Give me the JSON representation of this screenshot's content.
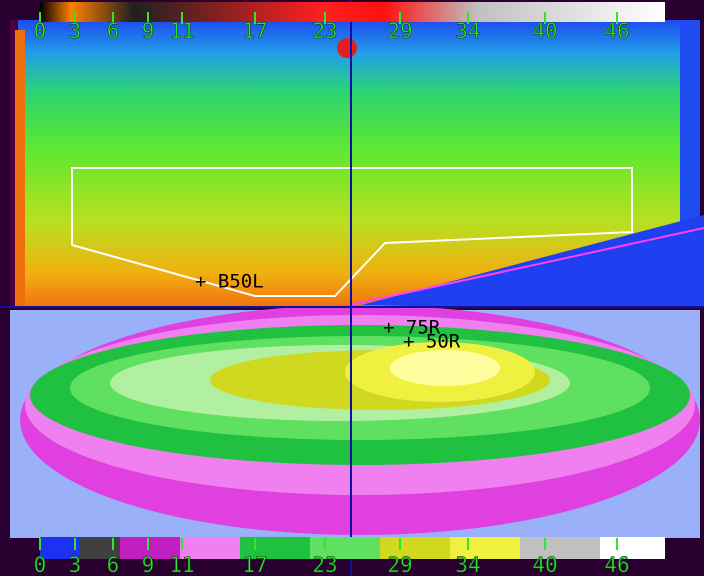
{
  "top_scale": {
    "labels": [
      0,
      3,
      6,
      9,
      11,
      17,
      23,
      29,
      34,
      40,
      46
    ]
  },
  "bottom_scale": {
    "labels": [
      0,
      3,
      6,
      9,
      11,
      17,
      23,
      29,
      34,
      40,
      46
    ]
  },
  "markers": [
    "+ B50L",
    "+ 75R",
    "+ 50R"
  ]
}
